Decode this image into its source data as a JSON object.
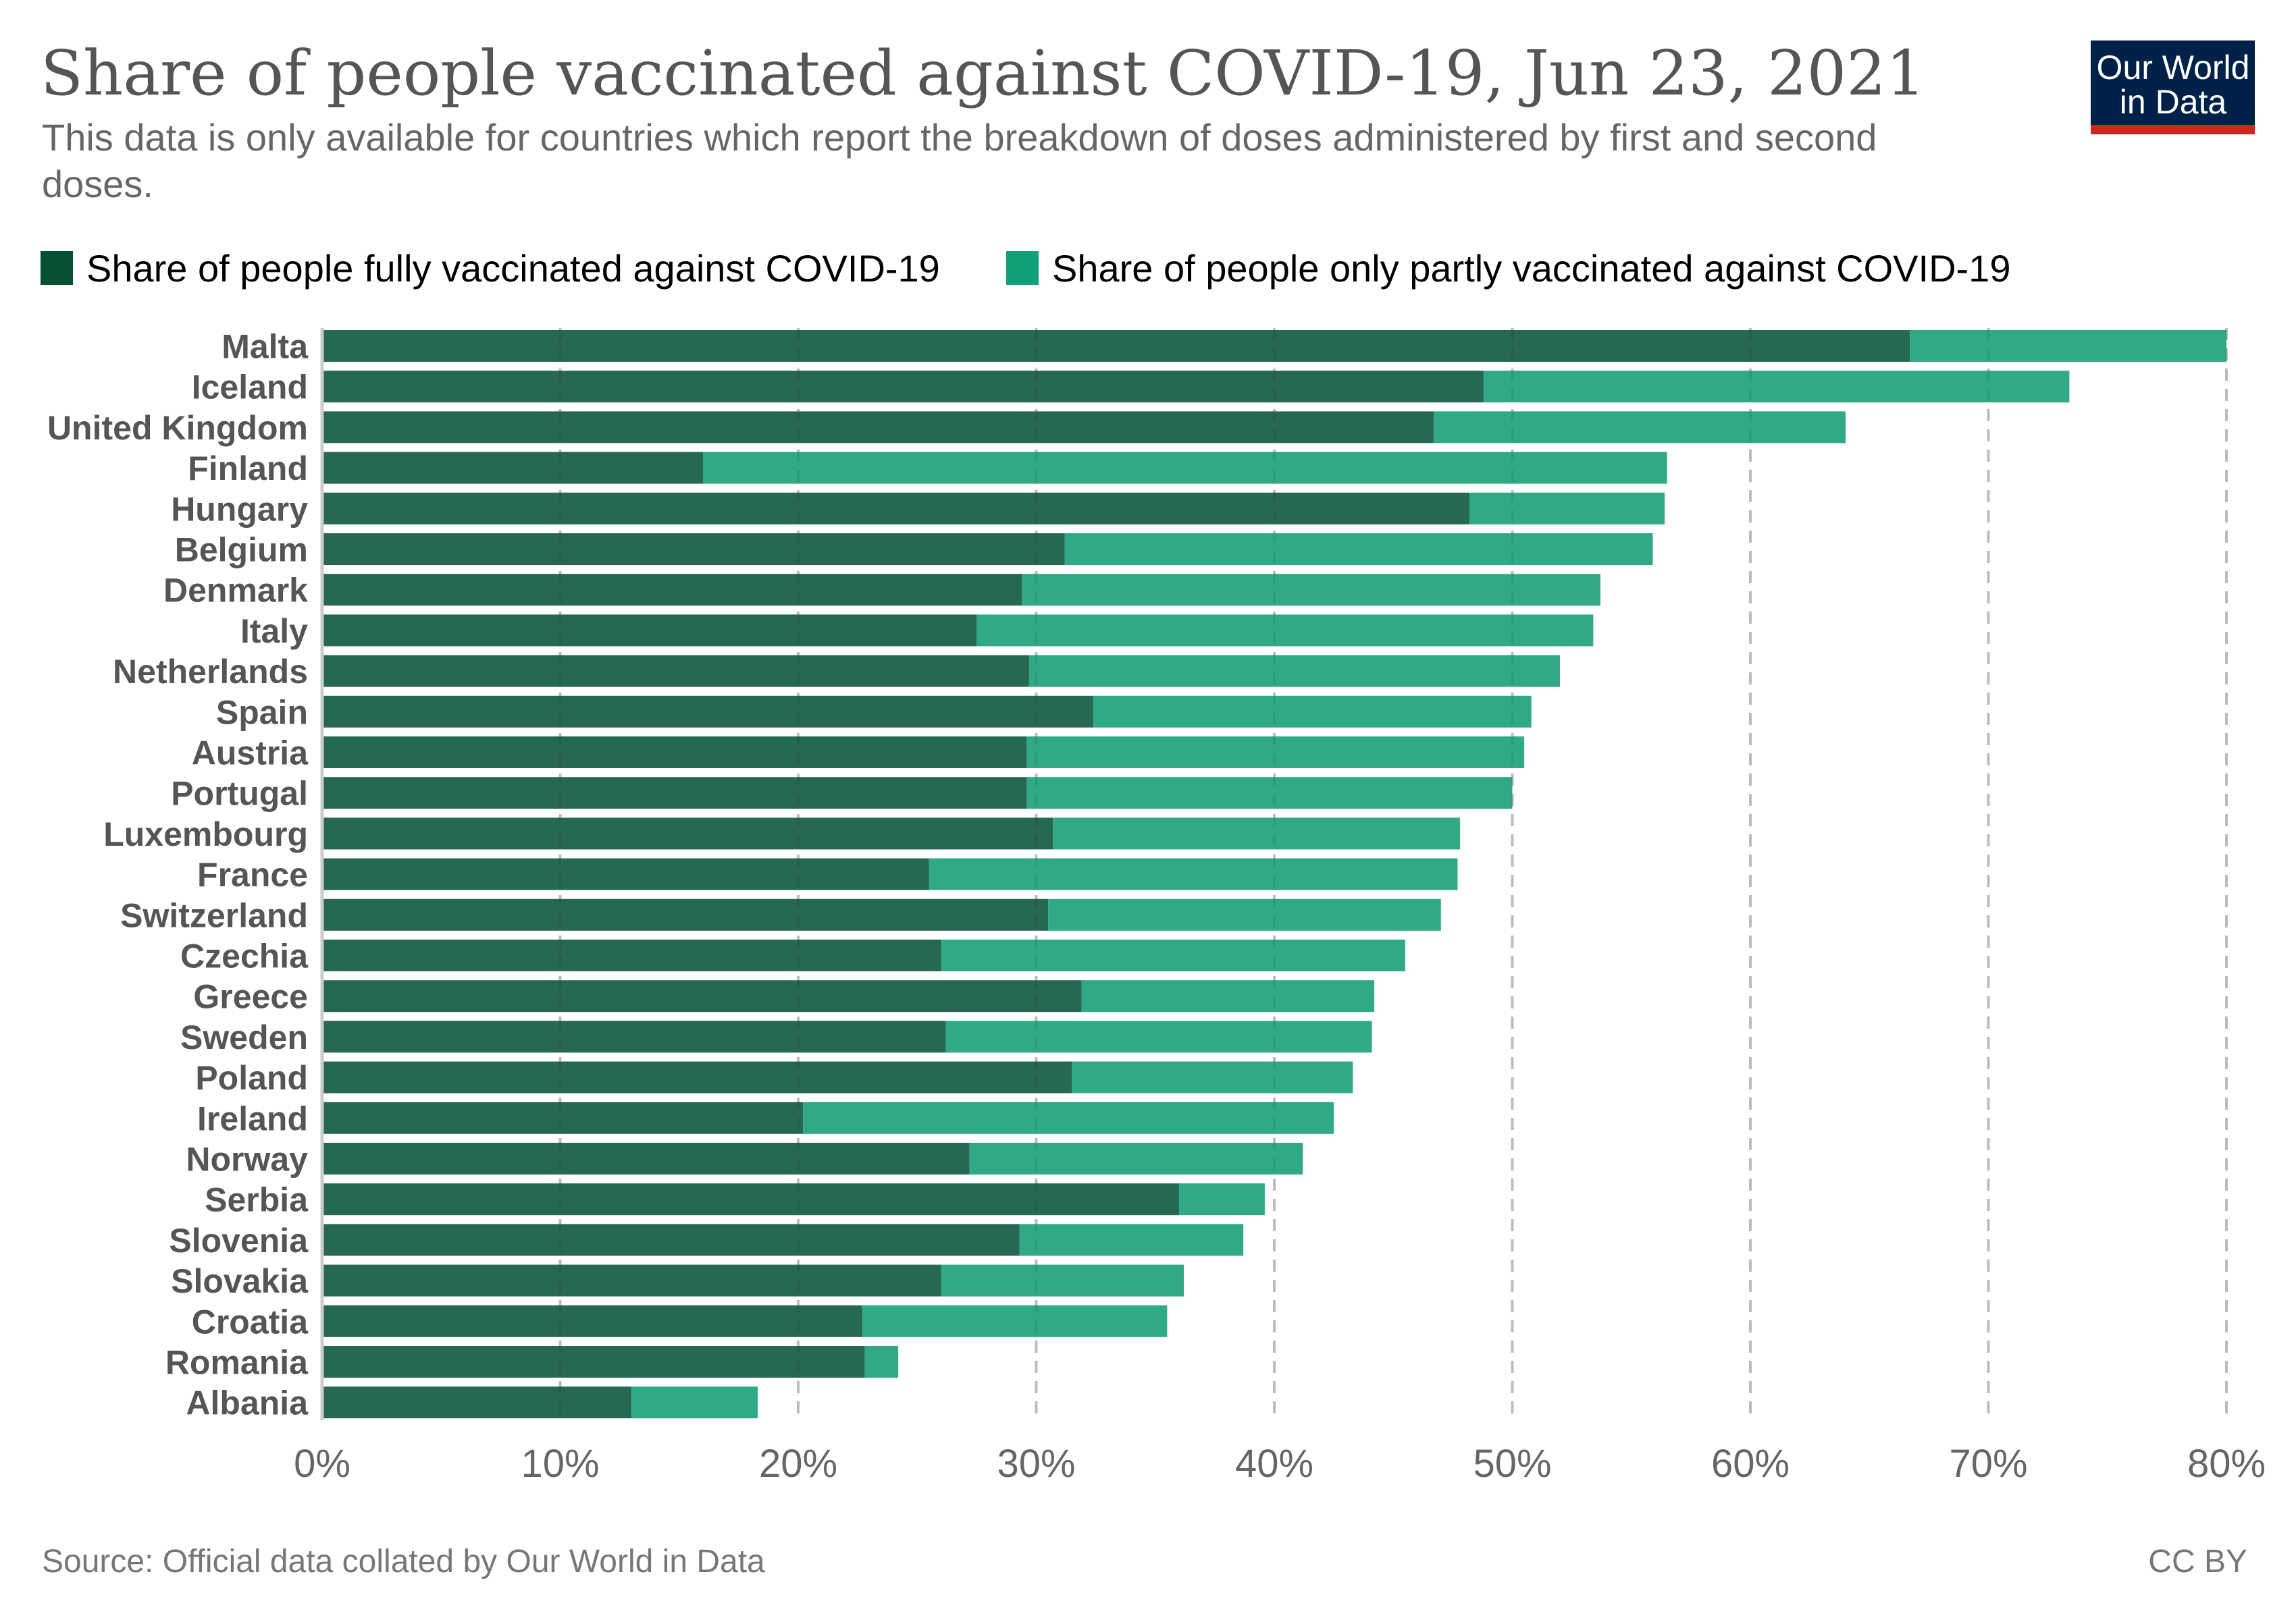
{
  "header": {
    "title": "Share of people vaccinated against COVID-19, Jun 23, 2021",
    "subtitle_lines": [
      "This data is only available for countries which report the breakdown of doses administered by first and second",
      "doses."
    ]
  },
  "logo": {
    "line1": "Our World",
    "line2": "in Data",
    "bg_color": "#002147",
    "accent_color": "#ce261e"
  },
  "legend": [
    {
      "label": "Share of people fully vaccinated against COVID-19",
      "swatch_color": "#054f33"
    },
    {
      "label": "Share of people only partly vaccinated against COVID-19",
      "swatch_color": "#11a077"
    }
  ],
  "footer": {
    "source": "Source: Official data collated by Our World in Data",
    "license": "CC BY"
  },
  "chart_data": {
    "type": "bar",
    "orientation": "horizontal",
    "stacked": true,
    "title": "Share of people vaccinated against COVID-19, Jun 23, 2021",
    "subtitle": "This data is only available for countries which report the breakdown of doses administered by first and second doses.",
    "xlabel": "",
    "ylabel": "",
    "xlim": [
      0,
      80
    ],
    "unit": "%",
    "grid": true,
    "legend_position": "top-left",
    "x_ticks": [
      0,
      10,
      20,
      30,
      40,
      50,
      60,
      70,
      80
    ],
    "x_tick_labels": [
      "0%",
      "10%",
      "20%",
      "30%",
      "40%",
      "50%",
      "60%",
      "70%",
      "80%"
    ],
    "categories": [
      "Malta",
      "Iceland",
      "United Kingdom",
      "Finland",
      "Hungary",
      "Belgium",
      "Denmark",
      "Italy",
      "Netherlands",
      "Spain",
      "Austria",
      "Portugal",
      "Luxembourg",
      "France",
      "Switzerland",
      "Czechia",
      "Greece",
      "Sweden",
      "Poland",
      "Ireland",
      "Norway",
      "Serbia",
      "Slovenia",
      "Slovakia",
      "Croatia",
      "Romania",
      "Albania"
    ],
    "series": [
      {
        "name": "Share of people fully vaccinated against COVID-19",
        "color": "#276853",
        "values": [
          66.7,
          48.8,
          46.7,
          16.0,
          48.2,
          31.2,
          29.4,
          27.5,
          29.7,
          32.4,
          29.6,
          29.6,
          30.7,
          25.5,
          30.5,
          26.0,
          31.9,
          26.2,
          31.5,
          20.2,
          27.2,
          36.0,
          29.3,
          26.0,
          22.7,
          22.8,
          13.0
        ]
      },
      {
        "name": "Share of people only partly vaccinated against COVID-19",
        "color": "#2faa85",
        "values": [
          13.3,
          24.6,
          17.3,
          40.5,
          8.2,
          24.7,
          24.3,
          25.9,
          22.3,
          18.4,
          20.9,
          20.4,
          17.1,
          22.2,
          16.5,
          19.5,
          12.3,
          17.9,
          11.8,
          22.3,
          14.0,
          3.6,
          9.4,
          10.2,
          12.8,
          1.4,
          5.3
        ]
      }
    ],
    "totals": [
      80.0,
      73.4,
      64.0,
      56.5,
      56.4,
      55.9,
      53.7,
      53.4,
      52.0,
      50.8,
      50.5,
      50.0,
      47.8,
      47.7,
      47.0,
      45.5,
      44.2,
      44.1,
      43.3,
      42.5,
      41.2,
      39.6,
      38.7,
      36.2,
      35.5,
      24.2,
      18.3
    ]
  }
}
